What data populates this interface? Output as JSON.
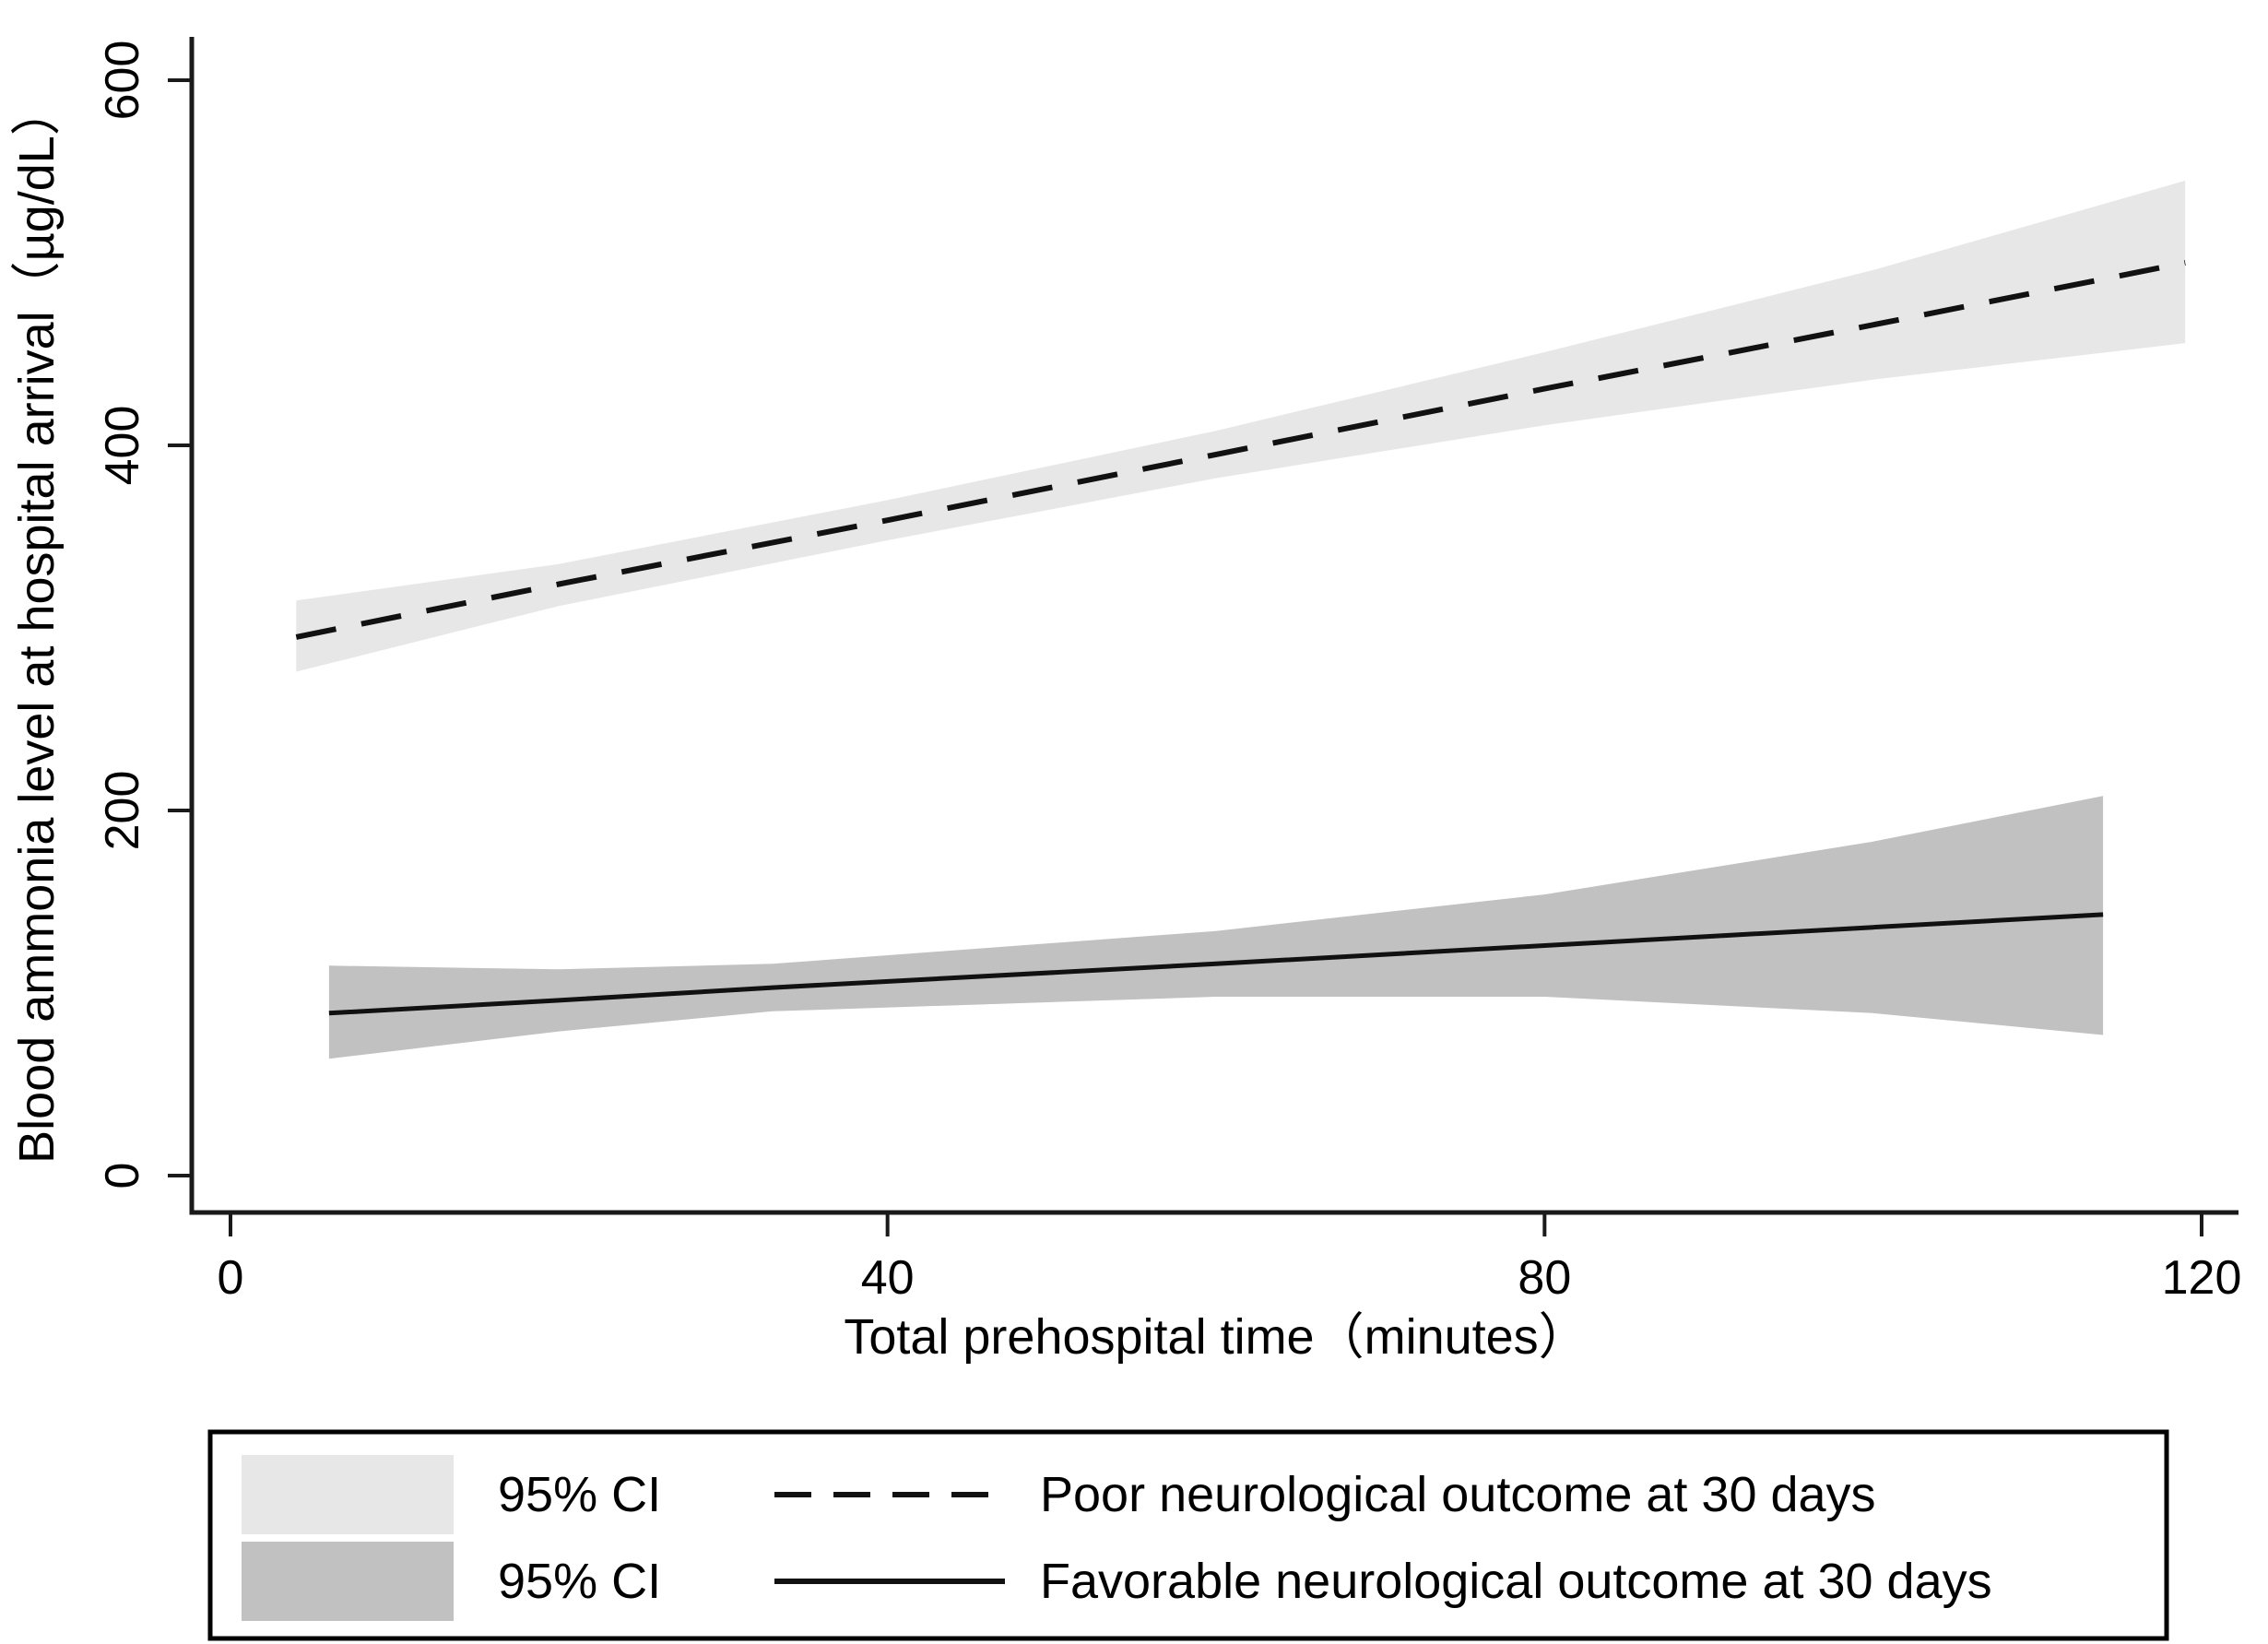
{
  "figure": {
    "background": "#ffffff",
    "axis_color": "#1a1a1a",
    "text_color": "#000000"
  },
  "chart_data": {
    "type": "line",
    "title": "",
    "xlabel": "Total prehospital time（minutes）",
    "ylabel": "Blood ammonia level at hospital arrival（µg/dL）",
    "xticks": [
      0,
      40,
      80,
      120
    ],
    "yticks": [
      0,
      200,
      400,
      600
    ],
    "xlim": [
      -2.4,
      122.3
    ],
    "ylim": [
      -20,
      624
    ],
    "grid": false,
    "legend_position": "bottom",
    "series": [
      {
        "name": "Poor neurological outcome at 30 days",
        "line_style": "dashed",
        "line_color": "#111111",
        "ci_color": "#e7e7e7",
        "x": [
          4,
          20,
          40,
          60,
          80,
          100,
          119
        ],
        "y": [
          295,
          324,
          359,
          395,
          431,
          466,
          500
        ],
        "ci_upper": [
          315,
          335,
          370,
          408,
          451,
          496,
          545
        ],
        "ci_lower": [
          276,
          312,
          348,
          382,
          411,
          436,
          456
        ]
      },
      {
        "name": "Favorable neurological outcome at 30 days",
        "line_style": "solid",
        "line_color": "#111111",
        "ci_color": "#c1c1c1",
        "x": [
          6,
          20,
          33,
          60,
          80,
          100,
          114
        ],
        "y": [
          89,
          96,
          103,
          116,
          126,
          136,
          143
        ],
        "ci_upper": [
          115,
          113,
          116,
          134,
          154,
          183,
          208
        ],
        "ci_lower": [
          64,
          79,
          90,
          98,
          98,
          89,
          77
        ]
      }
    ],
    "legend": [
      {
        "ci_label": "95% CI",
        "line_label": "Poor neurological outcome at 30 days",
        "line_style": "dashed",
        "ci_color": "#e7e7e7"
      },
      {
        "ci_label": "95% CI",
        "line_label": "Favorable neurological outcome at 30 days",
        "line_style": "solid",
        "ci_color": "#c1c1c1"
      }
    ]
  }
}
